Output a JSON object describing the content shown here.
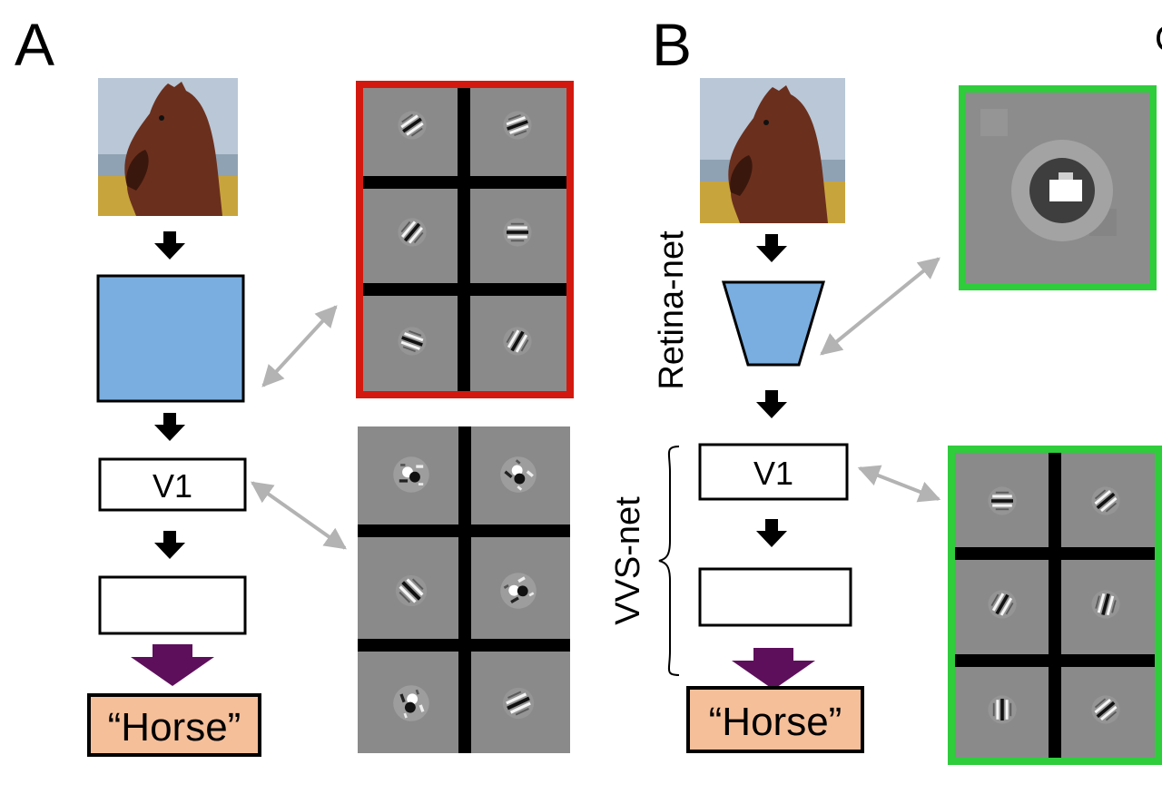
{
  "panels": [
    {
      "letter": "A",
      "v1_label": "V1",
      "output_label": "“Horse”",
      "colors": {
        "stage_fill": "#7aaee0",
        "output_fill": "#f5bf9a",
        "arrow_final": "#5e0f5c",
        "highlight_box": "#d3190f"
      }
    },
    {
      "letter": "B",
      "retina_label": "Retina-net",
      "vvs_label": "VVS-net",
      "v1_label": "V1",
      "output_label": "“Horse”",
      "colors": {
        "stage_fill": "#7aaee0",
        "output_fill": "#f5bf9a",
        "arrow_final": "#5e0f5c",
        "highlight_box": "#2fcc3c"
      }
    }
  ],
  "cropped_letter": "C",
  "icons": {
    "input_image": "horse-photo-icon",
    "filter_tiles": "gabor-filter-icon",
    "center_surround": "center-surround-filter-icon"
  },
  "colors": {
    "link_arrow": "#b3b3b3",
    "tile_bg": "#8a8a8a",
    "grid_line": "#000000"
  }
}
